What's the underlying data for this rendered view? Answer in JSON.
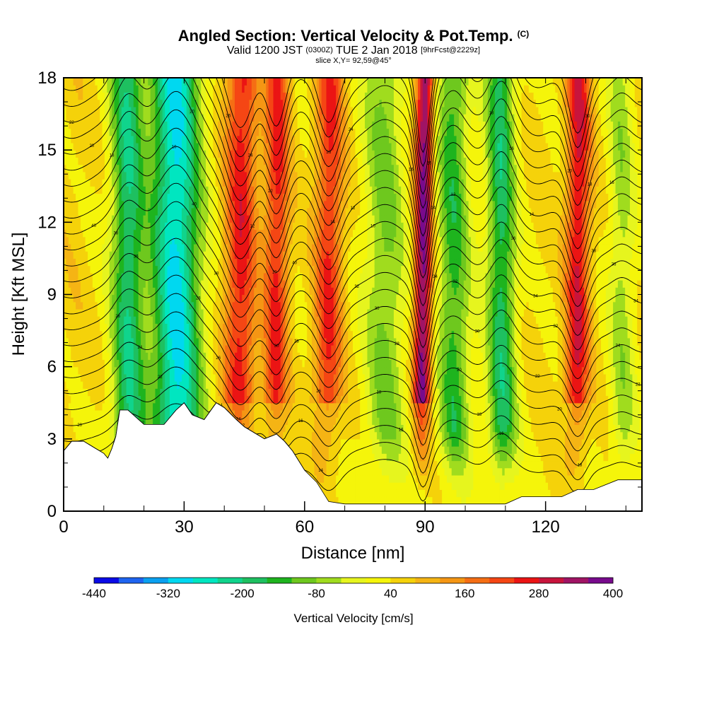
{
  "header": {
    "title": "Angled Section: Vertical Velocity & Pot.Temp.",
    "title_tag": "(C)",
    "valid_prefix": "Valid 1200 JST",
    "valid_small": "(0300Z)",
    "valid_date": "TUE 2 Jan 2018",
    "valid_fcst": "[9hrFcst@2229z]",
    "slice": "slice X,Y= 92,59@45°"
  },
  "chart_data": {
    "type": "heatmap",
    "title": "Angled Section: Vertical Velocity & Pot.Temp.",
    "xlabel": "Distance [nm]",
    "ylabel": "Height [Kft MSL]",
    "xlim": [
      0,
      144
    ],
    "ylim": [
      0,
      18
    ],
    "x_ticks": [
      0,
      30,
      60,
      90,
      120
    ],
    "y_ticks": [
      0,
      3,
      6,
      9,
      12,
      15,
      18
    ],
    "colorbar": {
      "title": "Vertical Velocity [cm/s]",
      "tick_labels": [
        -440,
        -320,
        -200,
        -80,
        40,
        160,
        280,
        400
      ],
      "levels": [
        -440,
        -400,
        -360,
        -320,
        -280,
        -240,
        -200,
        -160,
        -120,
        -80,
        -40,
        0,
        40,
        80,
        120,
        160,
        200,
        240,
        280,
        320,
        360,
        400
      ],
      "colors": [
        "#0a0ae6",
        "#1e64f0",
        "#0aa0f0",
        "#00d8f0",
        "#00e6c0",
        "#10d48c",
        "#1ec060",
        "#1eb41e",
        "#6ec81e",
        "#a0dc1e",
        "#e6f51e",
        "#f5f50a",
        "#f5d20a",
        "#f5b414",
        "#f59614",
        "#f56e14",
        "#f54614",
        "#eb1414",
        "#c8143c",
        "#a01464",
        "#780a8c"
      ]
    },
    "vertical_velocity_bands": [
      {
        "x": 2,
        "width": 5,
        "peak_cm_s": 60
      },
      {
        "x": 16,
        "width": 4,
        "peak_cm_s": -190
      },
      {
        "x": 28,
        "width": 6,
        "peak_cm_s": -290
      },
      {
        "x": 44,
        "width": 4,
        "peak_cm_s": 260
      },
      {
        "x": 53,
        "width": 3,
        "peak_cm_s": 250
      },
      {
        "x": 66,
        "width": 3.5,
        "peak_cm_s": 240
      },
      {
        "x": 80,
        "width": 5,
        "peak_cm_s": -90
      },
      {
        "x": 89.5,
        "width": 2.2,
        "peak_cm_s": 380
      },
      {
        "x": 97,
        "width": 4,
        "peak_cm_s": -140
      },
      {
        "x": 109,
        "width": 3.5,
        "peak_cm_s": -180
      },
      {
        "x": 118,
        "width": 4,
        "peak_cm_s": 50
      },
      {
        "x": 128,
        "width": 3,
        "peak_cm_s": 280
      },
      {
        "x": 139,
        "width": 3,
        "peak_cm_s": -60
      }
    ],
    "terrain": {
      "x": [
        0,
        2,
        5,
        8,
        10,
        11,
        12,
        13,
        14,
        16,
        20,
        25,
        28,
        30,
        32,
        35,
        38,
        40,
        43,
        45,
        48,
        50,
        53,
        55,
        57,
        60,
        63,
        66,
        70,
        75,
        80,
        90,
        100,
        110,
        114,
        118,
        120,
        124,
        128,
        132,
        138,
        141,
        144
      ],
      "height_kft": [
        2.5,
        2.9,
        2.9,
        2.6,
        2.4,
        2.2,
        2.6,
        3.1,
        4.2,
        4.2,
        3.6,
        3.6,
        4.2,
        4.5,
        4.0,
        3.8,
        4.5,
        4.3,
        3.8,
        3.5,
        3.2,
        3.0,
        3.2,
        2.9,
        2.5,
        1.7,
        1.2,
        0.4,
        0.3,
        0.3,
        0.3,
        0.3,
        0.3,
        0.3,
        0.6,
        0.6,
        0.6,
        0.6,
        0.9,
        0.9,
        1.3,
        1.3,
        1.3
      ]
    },
    "isentrope_labels": [
      "10",
      "12",
      "14",
      "16",
      "18",
      "20",
      "22",
      "24",
      "26",
      "28",
      "30",
      "32",
      "34",
      "36",
      "38",
      "40"
    ]
  }
}
